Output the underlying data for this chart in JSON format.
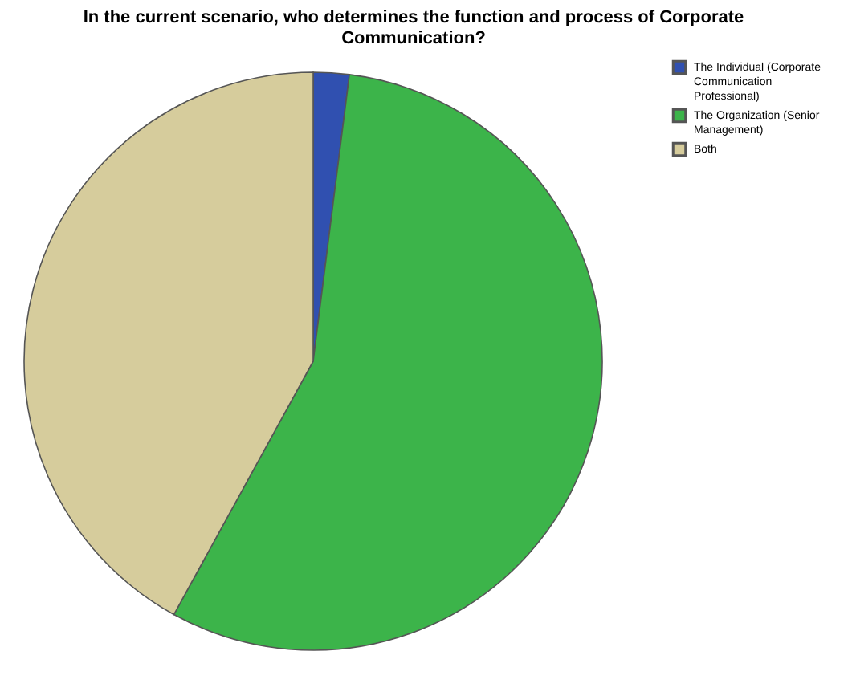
{
  "chart_data": {
    "type": "pie",
    "title": "In the current scenario, who determines the function and process of Corporate Communication?",
    "categories": [
      "The Individual (Corporate Communication Professional)",
      "The Organization (Senior Management)",
      "Both"
    ],
    "values": [
      2,
      56,
      42
    ],
    "colors": [
      "#3050b0",
      "#3cb44a",
      "#d6cc9c"
    ],
    "legend": "top right"
  }
}
